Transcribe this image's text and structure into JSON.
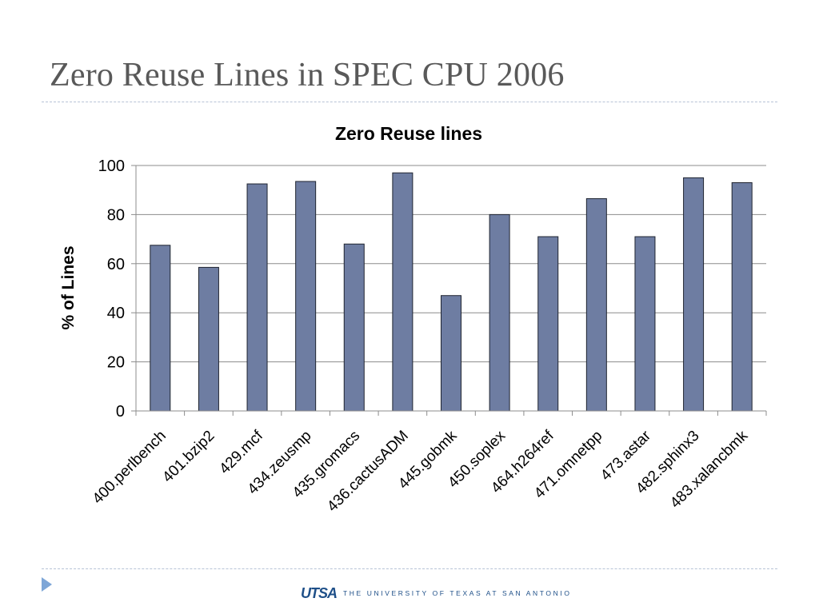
{
  "slide": {
    "title": "Zero Reuse Lines in SPEC CPU 2006"
  },
  "footer": {
    "logo": "UTSA",
    "text": "THE UNIVERSITY OF TEXAS AT SAN ANTONIO"
  },
  "colors": {
    "bar": "#6e7da2",
    "bar_edge": "#1f2430",
    "grid": "#8c8c8c",
    "title_gray": "#595959",
    "accent": "#7ea6d7",
    "footer_blue": "#1e4f88"
  },
  "chart_data": {
    "type": "bar",
    "title": "Zero Reuse lines",
    "xlabel": "",
    "ylabel": "% of Lines",
    "ylim": [
      0,
      100
    ],
    "yticks": [
      0,
      20,
      40,
      60,
      80,
      100
    ],
    "grid": true,
    "categories": [
      "400.perlbench",
      "401.bzip2",
      "429.mcf",
      "434.zeusmp",
      "435.gromacs",
      "436.cactusADM",
      "445.gobmk",
      "450.soplex",
      "464.h264ref",
      "471.omnetpp",
      "473.astar",
      "482.sphinx3",
      "483.xalancbmk"
    ],
    "values": [
      67.5,
      58.5,
      92.5,
      93.5,
      68,
      97,
      47,
      80,
      71,
      86.5,
      71,
      95,
      93
    ]
  }
}
